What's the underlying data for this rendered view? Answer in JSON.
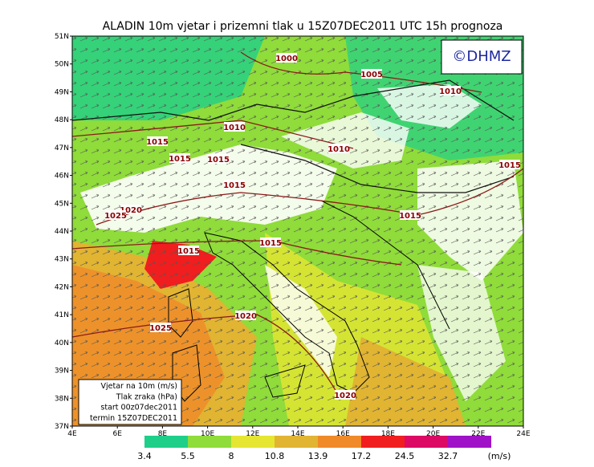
{
  "title": "ALADIN 10m vjetar i prizemni tlak u 15Z07DEC2011 UTC 15h prognoza",
  "logo": "©DHMZ",
  "lat_labels": [
    "51N",
    "50N",
    "49N",
    "48N",
    "47N",
    "46N",
    "45N",
    "44N",
    "43N",
    "42N",
    "41N",
    "40N",
    "39N",
    "38N",
    "37N"
  ],
  "lon_labels": [
    "4E",
    "6E",
    "8E",
    "10E",
    "12E",
    "14E",
    "16E",
    "18E",
    "20E",
    "22E",
    "24E"
  ],
  "isobar_labels": [
    "1000",
    "1005",
    "1010",
    "1010",
    "1015",
    "1010",
    "1015",
    "1015",
    "1015",
    "1015",
    "1020",
    "1025",
    "1015",
    "1015",
    "1015",
    "1020",
    "1025",
    "1020"
  ],
  "info_box": [
    "Vjetar na 10m (m/s)",
    "Tlak zraka (hPa)",
    "start 00z07dec2011",
    "termin 15Z07DEC2011"
  ],
  "colorbar": {
    "values": [
      3.4,
      5.5,
      8,
      10.8,
      13.9,
      17.2,
      24.5,
      32.7
    ],
    "colors": [
      "#1ecf8a",
      "#8fdc3a",
      "#e6e632",
      "#e1b432",
      "#f08a28",
      "#f01e1e",
      "#dc0a64",
      "#a012c8"
    ],
    "unit": "(m/s)"
  }
}
